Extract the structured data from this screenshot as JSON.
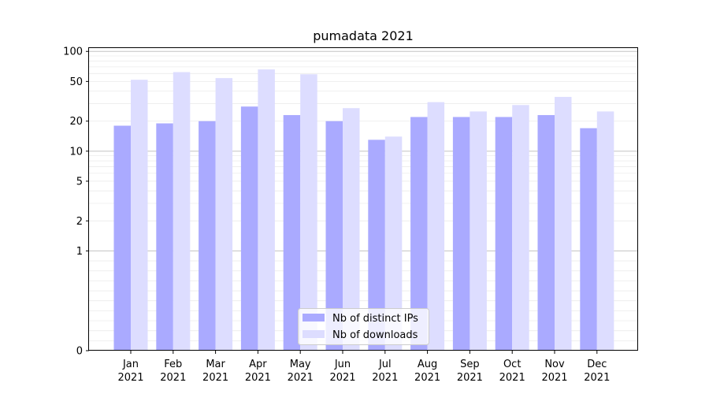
{
  "chart_data": {
    "type": "bar",
    "title": "pumadata 2021",
    "yscale": "symlog",
    "ylim": [
      0,
      110
    ],
    "yticks": [
      0,
      1,
      2,
      5,
      10,
      20,
      50,
      100
    ],
    "grid": "horizontal",
    "legend_position": "bottom-center",
    "categories": [
      [
        "Jan",
        "2021"
      ],
      [
        "Feb",
        "2021"
      ],
      [
        "Mar",
        "2021"
      ],
      [
        "Apr",
        "2021"
      ],
      [
        "May",
        "2021"
      ],
      [
        "Jun",
        "2021"
      ],
      [
        "Jul",
        "2021"
      ],
      [
        "Aug",
        "2021"
      ],
      [
        "Sep",
        "2021"
      ],
      [
        "Oct",
        "2021"
      ],
      [
        "Nov",
        "2021"
      ],
      [
        "Dec",
        "2021"
      ]
    ],
    "series": [
      {
        "name": "Nb of distinct IPs",
        "color": "#aaaaff",
        "values": [
          18,
          19,
          20,
          28,
          23,
          20,
          13,
          22,
          22,
          22,
          23,
          17
        ]
      },
      {
        "name": "Nb of downloads",
        "color": "#ddddff",
        "values": [
          52,
          62,
          54,
          66,
          59,
          27,
          14,
          31,
          25,
          29,
          35,
          25
        ]
      }
    ]
  }
}
